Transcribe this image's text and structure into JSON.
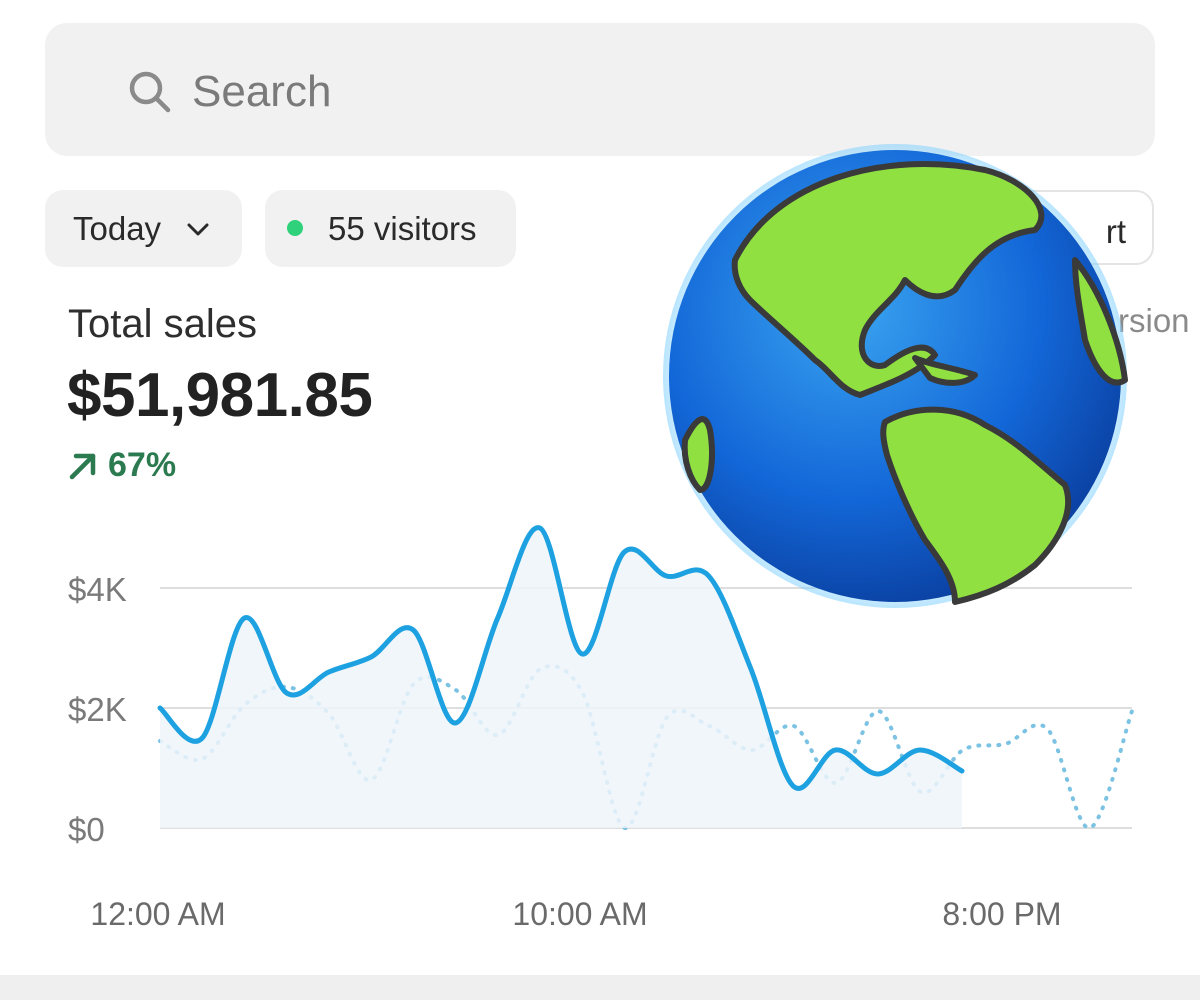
{
  "search": {
    "placeholder": "Search"
  },
  "filters": {
    "date_range": "Today",
    "visitors": "55 visitors",
    "visitors_dot_color": "#2fd27a",
    "report_label": "rt",
    "conversion_label": "rsion"
  },
  "metric": {
    "title": "Total sales",
    "value": "$51,981.85",
    "change": "67%",
    "change_direction": "up",
    "change_color": "#2b7a50"
  },
  "overlay": {
    "icon": "globe-americas-emoji"
  },
  "chart_data": {
    "type": "line",
    "x_tick_labels": [
      "12:00 AM",
      "10:00 AM",
      "8:00 PM"
    ],
    "y_tick_labels": [
      "$0",
      "$2K",
      "$4K"
    ],
    "ylim": [
      0,
      5200
    ],
    "grid": true,
    "colors": {
      "current": "#1da1e0",
      "previous": "#7cc3e3"
    },
    "series": [
      {
        "style": "solid",
        "values": [
          2000,
          1500,
          3500,
          2250,
          2600,
          2850,
          3300,
          1750,
          3500,
          5000,
          2900,
          4600,
          4200,
          4200,
          2650,
          700,
          1300,
          900,
          1300,
          950
        ]
      },
      {
        "style": "dotted",
        "values": [
          1450,
          1150,
          2050,
          2350,
          1900,
          800,
          2400,
          2300,
          1550,
          2650,
          2250,
          0,
          1850,
          1700,
          1300,
          1700,
          750,
          1950,
          600,
          1300,
          1400,
          1650,
          0,
          1950
        ]
      }
    ]
  }
}
